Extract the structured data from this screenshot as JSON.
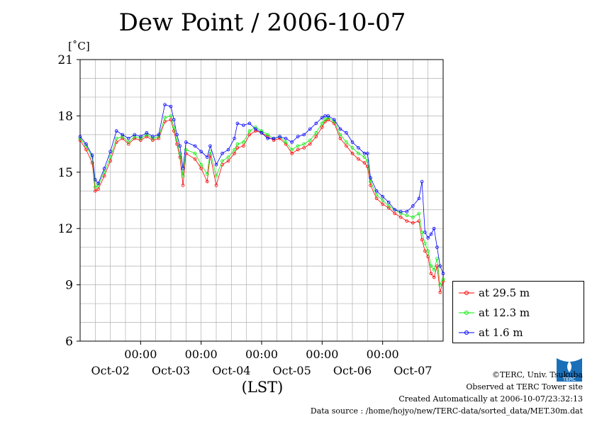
{
  "chart_data": {
    "type": "line",
    "title": "Dew Point / 2006-10-07",
    "ylabel": "[˚C]",
    "xlabel": "(LST)",
    "ylim": [
      6,
      21
    ],
    "yticks": [
      6,
      9,
      12,
      15,
      18,
      21
    ],
    "xlim": [
      0,
      6
    ],
    "x_ticks": [
      {
        "x": 1,
        "time": "00:00",
        "date": "Oct-02"
      },
      {
        "x": 2,
        "time": "00:00",
        "date": "Oct-03"
      },
      {
        "x": 3,
        "time": "00:00",
        "date": "Oct-04"
      },
      {
        "x": 4,
        "time": "00:00",
        "date": "Oct-05"
      },
      {
        "x": 5,
        "time": "00:00",
        "date": "Oct-06"
      },
      {
        "x": 6,
        "time": "00:00",
        "date": "Oct-07"
      }
    ],
    "grid": true,
    "legend_position": "right",
    "series": [
      {
        "name": "at 29.5 m",
        "color": "#ff0000",
        "points": [
          [
            0,
            16.7
          ],
          [
            0.1,
            16.2
          ],
          [
            0.2,
            15.5
          ],
          [
            0.25,
            14.0
          ],
          [
            0.3,
            14.1
          ],
          [
            0.4,
            14.8
          ],
          [
            0.5,
            15.6
          ],
          [
            0.6,
            16.6
          ],
          [
            0.7,
            16.8
          ],
          [
            0.8,
            16.5
          ],
          [
            0.9,
            16.8
          ],
          [
            1.0,
            16.7
          ],
          [
            1.1,
            16.9
          ],
          [
            1.2,
            16.7
          ],
          [
            1.3,
            16.8
          ],
          [
            1.4,
            17.7
          ],
          [
            1.5,
            17.8
          ],
          [
            1.55,
            17.2
          ],
          [
            1.6,
            16.5
          ],
          [
            1.65,
            15.8
          ],
          [
            1.7,
            14.3
          ],
          [
            1.75,
            16.0
          ],
          [
            1.9,
            15.7
          ],
          [
            2.0,
            15.2
          ],
          [
            2.1,
            14.5
          ],
          [
            2.15,
            15.9
          ],
          [
            2.25,
            14.3
          ],
          [
            2.35,
            15.4
          ],
          [
            2.45,
            15.6
          ],
          [
            2.55,
            16.0
          ],
          [
            2.6,
            16.3
          ],
          [
            2.7,
            16.4
          ],
          [
            2.8,
            17.0
          ],
          [
            2.9,
            17.2
          ],
          [
            3.0,
            17.1
          ],
          [
            3.1,
            16.9
          ],
          [
            3.2,
            16.7
          ],
          [
            3.3,
            16.8
          ],
          [
            3.4,
            16.5
          ],
          [
            3.5,
            16.0
          ],
          [
            3.6,
            16.2
          ],
          [
            3.7,
            16.3
          ],
          [
            3.8,
            16.5
          ],
          [
            3.9,
            16.9
          ],
          [
            4.0,
            17.4
          ],
          [
            4.05,
            17.7
          ],
          [
            4.1,
            17.8
          ],
          [
            4.2,
            17.6
          ],
          [
            4.3,
            16.8
          ],
          [
            4.4,
            16.4
          ],
          [
            4.5,
            16.0
          ],
          [
            4.6,
            15.7
          ],
          [
            4.7,
            15.5
          ],
          [
            4.75,
            15.3
          ],
          [
            4.8,
            14.3
          ],
          [
            4.9,
            13.6
          ],
          [
            5.0,
            13.3
          ],
          [
            5.1,
            13.1
          ],
          [
            5.2,
            12.8
          ],
          [
            5.3,
            12.6
          ],
          [
            5.4,
            12.4
          ],
          [
            5.5,
            12.3
          ],
          [
            5.6,
            12.4
          ],
          [
            5.65,
            11.4
          ],
          [
            5.7,
            10.8
          ],
          [
            5.75,
            10.5
          ],
          [
            5.8,
            9.6
          ],
          [
            5.85,
            9.4
          ],
          [
            5.9,
            10.0
          ],
          [
            5.95,
            8.6
          ],
          [
            6.0,
            9.2
          ]
        ]
      },
      {
        "name": "at 12.3 m",
        "color": "#00ee00",
        "points": [
          [
            0,
            16.8
          ],
          [
            0.1,
            16.4
          ],
          [
            0.2,
            15.8
          ],
          [
            0.25,
            14.2
          ],
          [
            0.3,
            14.3
          ],
          [
            0.4,
            15.0
          ],
          [
            0.5,
            15.8
          ],
          [
            0.6,
            16.8
          ],
          [
            0.7,
            16.9
          ],
          [
            0.8,
            16.6
          ],
          [
            0.9,
            16.9
          ],
          [
            1.0,
            16.8
          ],
          [
            1.1,
            17.0
          ],
          [
            1.2,
            16.8
          ],
          [
            1.3,
            16.9
          ],
          [
            1.4,
            17.9
          ],
          [
            1.5,
            18.0
          ],
          [
            1.55,
            17.4
          ],
          [
            1.6,
            16.7
          ],
          [
            1.65,
            16.0
          ],
          [
            1.7,
            14.8
          ],
          [
            1.75,
            16.2
          ],
          [
            1.9,
            16.0
          ],
          [
            2.0,
            15.4
          ],
          [
            2.1,
            14.9
          ],
          [
            2.15,
            16.1
          ],
          [
            2.25,
            14.8
          ],
          [
            2.35,
            15.6
          ],
          [
            2.45,
            15.8
          ],
          [
            2.55,
            16.2
          ],
          [
            2.6,
            16.5
          ],
          [
            2.7,
            16.6
          ],
          [
            2.8,
            17.2
          ],
          [
            2.9,
            17.4
          ],
          [
            3.0,
            17.2
          ],
          [
            3.1,
            17.0
          ],
          [
            3.2,
            16.8
          ],
          [
            3.3,
            16.9
          ],
          [
            3.4,
            16.6
          ],
          [
            3.5,
            16.2
          ],
          [
            3.6,
            16.4
          ],
          [
            3.7,
            16.5
          ],
          [
            3.8,
            16.7
          ],
          [
            3.9,
            17.1
          ],
          [
            4.0,
            17.6
          ],
          [
            4.05,
            17.8
          ],
          [
            4.1,
            17.9
          ],
          [
            4.2,
            17.7
          ],
          [
            4.3,
            17.0
          ],
          [
            4.4,
            16.6
          ],
          [
            4.5,
            16.3
          ],
          [
            4.6,
            16.0
          ],
          [
            4.7,
            15.8
          ],
          [
            4.75,
            15.6
          ],
          [
            4.8,
            14.5
          ],
          [
            4.9,
            13.8
          ],
          [
            5.0,
            13.5
          ],
          [
            5.1,
            13.2
          ],
          [
            5.2,
            13.0
          ],
          [
            5.3,
            12.8
          ],
          [
            5.4,
            12.7
          ],
          [
            5.5,
            12.6
          ],
          [
            5.6,
            12.8
          ],
          [
            5.65,
            11.8
          ],
          [
            5.7,
            11.2
          ],
          [
            5.75,
            10.8
          ],
          [
            5.8,
            10.0
          ],
          [
            5.85,
            9.8
          ],
          [
            5.9,
            10.4
          ],
          [
            5.95,
            9.0
          ],
          [
            6.0,
            9.3
          ]
        ]
      },
      {
        "name": "at 1.6 m",
        "color": "#0000ff",
        "points": [
          [
            0,
            16.9
          ],
          [
            0.1,
            16.5
          ],
          [
            0.2,
            15.9
          ],
          [
            0.25,
            14.6
          ],
          [
            0.3,
            14.4
          ],
          [
            0.4,
            15.2
          ],
          [
            0.5,
            16.1
          ],
          [
            0.6,
            17.2
          ],
          [
            0.7,
            17.0
          ],
          [
            0.8,
            16.8
          ],
          [
            0.9,
            17.0
          ],
          [
            1.0,
            16.9
          ],
          [
            1.1,
            17.1
          ],
          [
            1.2,
            16.9
          ],
          [
            1.3,
            17.0
          ],
          [
            1.4,
            18.6
          ],
          [
            1.5,
            18.5
          ],
          [
            1.55,
            17.8
          ],
          [
            1.6,
            17.0
          ],
          [
            1.65,
            16.4
          ],
          [
            1.7,
            15.2
          ],
          [
            1.75,
            16.6
          ],
          [
            1.9,
            16.4
          ],
          [
            2.0,
            16.1
          ],
          [
            2.1,
            15.8
          ],
          [
            2.15,
            16.4
          ],
          [
            2.25,
            15.4
          ],
          [
            2.35,
            16.0
          ],
          [
            2.45,
            16.2
          ],
          [
            2.55,
            16.8
          ],
          [
            2.6,
            17.6
          ],
          [
            2.7,
            17.5
          ],
          [
            2.8,
            17.6
          ],
          [
            2.9,
            17.3
          ],
          [
            3.0,
            17.1
          ],
          [
            3.1,
            16.8
          ],
          [
            3.2,
            16.8
          ],
          [
            3.3,
            16.9
          ],
          [
            3.4,
            16.8
          ],
          [
            3.5,
            16.6
          ],
          [
            3.6,
            16.9
          ],
          [
            3.7,
            17.0
          ],
          [
            3.8,
            17.3
          ],
          [
            3.9,
            17.6
          ],
          [
            4.0,
            17.9
          ],
          [
            4.05,
            18.0
          ],
          [
            4.1,
            18.0
          ],
          [
            4.2,
            17.8
          ],
          [
            4.3,
            17.3
          ],
          [
            4.4,
            17.1
          ],
          [
            4.5,
            16.6
          ],
          [
            4.6,
            16.3
          ],
          [
            4.7,
            16.0
          ],
          [
            4.75,
            16.0
          ],
          [
            4.8,
            14.7
          ],
          [
            4.9,
            14.0
          ],
          [
            5.0,
            13.7
          ],
          [
            5.1,
            13.4
          ],
          [
            5.2,
            13.0
          ],
          [
            5.3,
            12.9
          ],
          [
            5.4,
            12.9
          ],
          [
            5.5,
            13.2
          ],
          [
            5.6,
            13.6
          ],
          [
            5.65,
            14.5
          ],
          [
            5.7,
            11.8
          ],
          [
            5.75,
            11.5
          ],
          [
            5.8,
            11.7
          ],
          [
            5.85,
            12.0
          ],
          [
            5.9,
            11.0
          ],
          [
            5.95,
            10.0
          ],
          [
            6.0,
            9.6
          ]
        ]
      }
    ]
  },
  "footer": {
    "copyright": "©TERC, Univ. Tsukuba",
    "observed": "Observed at TERC Tower site",
    "created": "Created Automatically at 2006-10-07/23:32:13",
    "source": "Data source : /home/hojyo/new/TERC-data/sorted_data/MET.30m.dat"
  },
  "logo_text": "TERC"
}
